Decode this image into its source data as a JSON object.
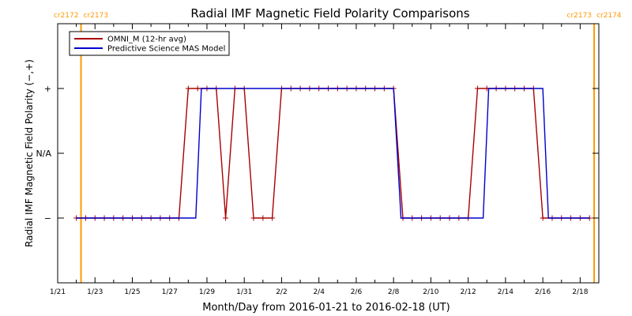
{
  "chart_data": {
    "type": "line",
    "title": "Radial IMF Magnetic Field Polarity Comparisons",
    "xlabel": "Month/Day from 2016-01-21 to 2016-02-18 (UT)",
    "ylabel": "Radial IMF Magnetic Field Polarity (−,+)",
    "x_start": "2016-01-21",
    "x_end": "2016-02-18",
    "xlim_days": [
      0,
      29
    ],
    "ylim": [
      -2,
      2
    ],
    "y_ticks": [
      {
        "value": 1,
        "label": "+"
      },
      {
        "value": 0,
        "label": "N/A"
      },
      {
        "value": -1,
        "label": "−"
      }
    ],
    "x_ticks": [
      {
        "day": 0,
        "label": "1/21"
      },
      {
        "day": 2,
        "label": "1/23"
      },
      {
        "day": 4,
        "label": "1/25"
      },
      {
        "day": 6,
        "label": "1/27"
      },
      {
        "day": 8,
        "label": "1/29"
      },
      {
        "day": 10,
        "label": "1/31"
      },
      {
        "day": 12,
        "label": "2/2"
      },
      {
        "day": 14,
        "label": "2/4"
      },
      {
        "day": 16,
        "label": "2/6"
      },
      {
        "day": 18,
        "label": "2/8"
      },
      {
        "day": 20,
        "label": "2/10"
      },
      {
        "day": 22,
        "label": "2/12"
      },
      {
        "day": 24,
        "label": "2/14"
      },
      {
        "day": 26,
        "label": "2/16"
      },
      {
        "day": 28,
        "label": "2/18"
      }
    ],
    "rotation_markers": [
      {
        "day": 1.25,
        "left_label": "cr2172",
        "right_label": "cr2173",
        "color": "#ff9900"
      },
      {
        "day": 28.75,
        "left_label": "cr2173",
        "right_label": "cr2174",
        "color": "#ff9900"
      }
    ],
    "legend_position": "top-left",
    "series": [
      {
        "name": "OMNI_M (12-hr avg)",
        "color": "#aa0000",
        "markers": true,
        "points": [
          [
            1.0,
            -1
          ],
          [
            1.5,
            -1
          ],
          [
            2.0,
            -1
          ],
          [
            2.5,
            -1
          ],
          [
            3.0,
            -1
          ],
          [
            3.5,
            -1
          ],
          [
            4.0,
            -1
          ],
          [
            4.5,
            -1
          ],
          [
            5.0,
            -1
          ],
          [
            5.5,
            -1
          ],
          [
            6.0,
            -1
          ],
          [
            6.5,
            -1
          ],
          [
            7.0,
            1
          ],
          [
            7.5,
            1
          ],
          [
            8.0,
            1
          ],
          [
            8.5,
            1
          ],
          [
            9.0,
            -1
          ],
          [
            9.5,
            1
          ],
          [
            10.0,
            1
          ],
          [
            10.5,
            -1
          ],
          [
            11.0,
            -1
          ],
          [
            11.5,
            -1
          ],
          [
            12.0,
            1
          ],
          [
            12.5,
            1
          ],
          [
            13.0,
            1
          ],
          [
            13.5,
            1
          ],
          [
            14.0,
            1
          ],
          [
            14.5,
            1
          ],
          [
            15.0,
            1
          ],
          [
            15.5,
            1
          ],
          [
            16.0,
            1
          ],
          [
            16.5,
            1
          ],
          [
            17.0,
            1
          ],
          [
            17.5,
            1
          ],
          [
            18.0,
            1
          ],
          [
            18.5,
            -1
          ],
          [
            19.0,
            -1
          ],
          [
            19.5,
            -1
          ],
          [
            20.0,
            -1
          ],
          [
            20.5,
            -1
          ],
          [
            21.0,
            -1
          ],
          [
            21.5,
            -1
          ],
          [
            22.0,
            -1
          ],
          [
            22.5,
            1
          ],
          [
            23.0,
            1
          ],
          [
            23.5,
            1
          ],
          [
            24.0,
            1
          ],
          [
            24.5,
            1
          ],
          [
            25.0,
            1
          ],
          [
            25.5,
            1
          ],
          [
            26.0,
            -1
          ],
          [
            26.5,
            -1
          ],
          [
            27.0,
            -1
          ],
          [
            27.5,
            -1
          ],
          [
            28.0,
            -1
          ],
          [
            28.5,
            -1
          ]
        ]
      },
      {
        "name": "Predictive Science MAS Model",
        "color": "#0000cc",
        "markers": false,
        "points": [
          [
            1.0,
            -1
          ],
          [
            7.4,
            -1
          ],
          [
            7.7,
            1
          ],
          [
            18.0,
            1
          ],
          [
            18.4,
            -1
          ],
          [
            22.8,
            -1
          ],
          [
            23.1,
            1
          ],
          [
            26.0,
            1
          ],
          [
            26.3,
            -1
          ],
          [
            28.5,
            -1
          ]
        ]
      }
    ]
  }
}
